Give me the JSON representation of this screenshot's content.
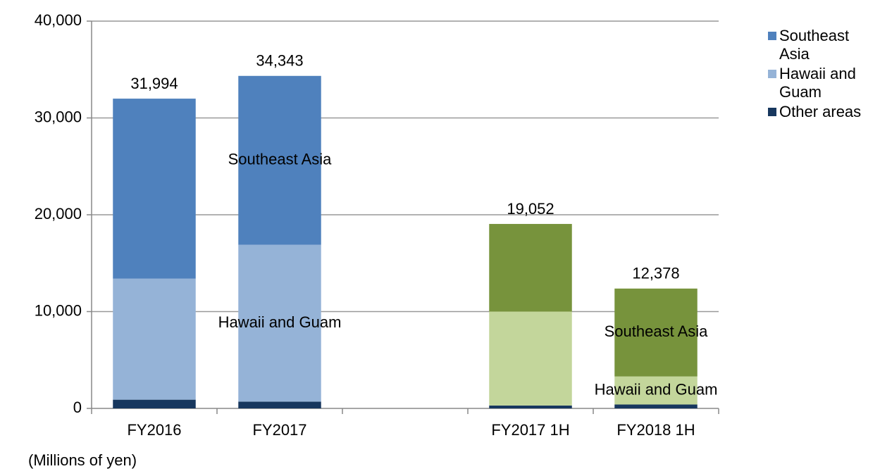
{
  "chart_data": {
    "type": "stacked_bar",
    "categories": [
      "FY2016",
      "FY2017",
      null,
      "FY2017 1H",
      "FY2018 1H"
    ],
    "series": [
      {
        "name": "Other areas",
        "color": "#17375e",
        "point_colors": [
          "#17375e",
          "#17375e",
          null,
          "#17375e",
          "#17375e"
        ],
        "values": [
          900,
          700,
          null,
          300,
          400
        ]
      },
      {
        "name": "Hawaii and Guam",
        "color": "#95b3d7",
        "point_colors": [
          "#95b3d7",
          "#95b3d7",
          null,
          "#c3d69b",
          "#c3d69b"
        ],
        "values": [
          12500,
          16200,
          null,
          9700,
          2900
        ],
        "labels": [
          null,
          "Hawaii and Guam",
          null,
          null,
          "Hawaii and Guam"
        ]
      },
      {
        "name": "Southeast Asia",
        "color": "#4f81bd",
        "point_colors": [
          "#4f81bd",
          "#4f81bd",
          null,
          "#77933c",
          "#77933c"
        ],
        "values": [
          18594,
          17443,
          null,
          9052,
          9078
        ],
        "labels": [
          null,
          "Southeast Asia",
          null,
          null,
          "Southeast Asia"
        ]
      }
    ],
    "totals": [
      31994,
      34343,
      null,
      19052,
      12378
    ],
    "total_labels": [
      "31,994",
      "34,343",
      null,
      "19,052",
      "12,378"
    ],
    "ylim": [
      0,
      40000
    ],
    "yticks": [
      0,
      {
        "value": 10000,
        "label": "10,000"
      },
      {
        "value": 20000,
        "label": "20,000"
      },
      {
        "value": 30000,
        "label": "30,000"
      },
      {
        "value": 40000,
        "label": "40,000"
      }
    ],
    "grid": true,
    "y_label": "(Millions of yen)",
    "legend": "right"
  }
}
